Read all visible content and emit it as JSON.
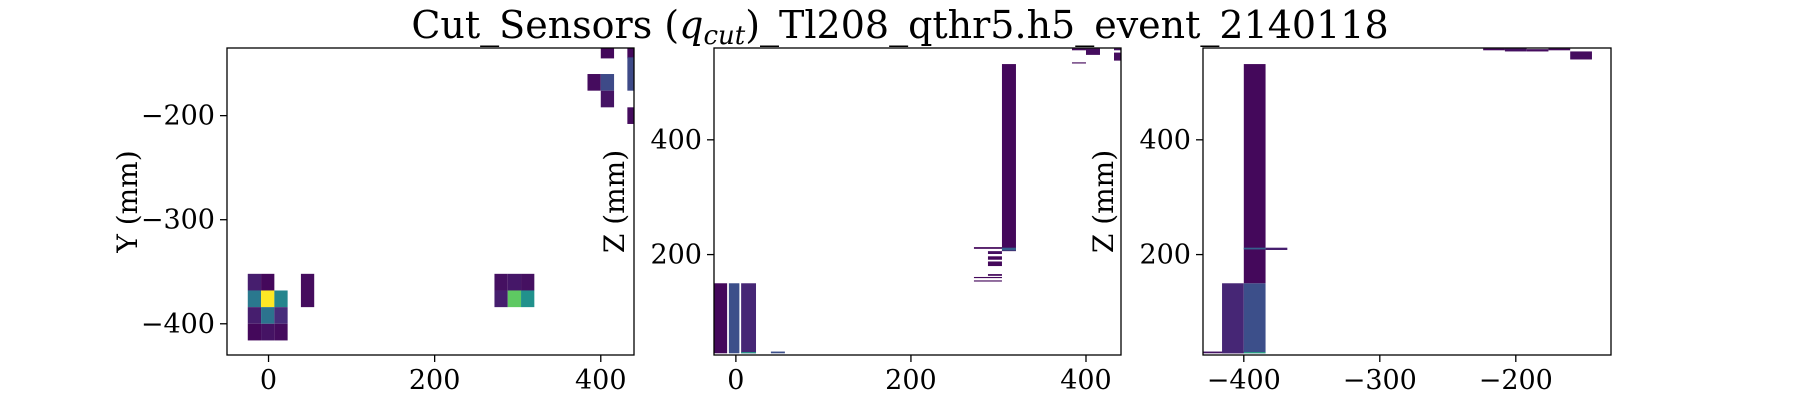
{
  "figure": {
    "title_main": "Cut_Sensors (",
    "title_q": "q",
    "title_sub": "cut",
    "title_rest": ")_Tl208_qthr5.h5_event_2140118"
  },
  "colormap": {
    "name": "viridis",
    "stops": [
      "#440154",
      "#472f7d",
      "#3b528b",
      "#2c728e",
      "#21918c",
      "#28ae80",
      "#5ec962",
      "#addc30",
      "#fde725"
    ]
  },
  "chart_data": [
    {
      "type": "heatmap",
      "xlabel": "",
      "ylabel": "Y (mm)",
      "xlim": [
        -50,
        440
      ],
      "ylim": [
        -430,
        -135
      ],
      "xticks": [
        0,
        200,
        400
      ],
      "yticks": [
        -200,
        -300,
        -400
      ],
      "xtick_labels": [
        "0",
        "200",
        "400"
      ],
      "ytick_labels": [
        "−200",
        "−300",
        "−400"
      ],
      "cells": [
        {
          "x": -25,
          "y": -368,
          "w": 16,
          "h": 16,
          "v": 0.08
        },
        {
          "x": -9,
          "y": -368,
          "w": 16,
          "h": 16,
          "v": 0.02
        },
        {
          "x": -25,
          "y": -384,
          "w": 16,
          "h": 16,
          "v": 0.4
        },
        {
          "x": -9,
          "y": -384,
          "w": 16,
          "h": 16,
          "v": 1.0
        },
        {
          "x": 7,
          "y": -384,
          "w": 16,
          "h": 16,
          "v": 0.45
        },
        {
          "x": -25,
          "y": -400,
          "w": 16,
          "h": 16,
          "v": 0.08
        },
        {
          "x": -9,
          "y": -400,
          "w": 16,
          "h": 16,
          "v": 0.38
        },
        {
          "x": 7,
          "y": -400,
          "w": 16,
          "h": 16,
          "v": 0.12
        },
        {
          "x": -25,
          "y": -416,
          "w": 16,
          "h": 16,
          "v": 0.02
        },
        {
          "x": -9,
          "y": -416,
          "w": 16,
          "h": 16,
          "v": 0.05
        },
        {
          "x": 7,
          "y": -416,
          "w": 16,
          "h": 16,
          "v": 0.03
        },
        {
          "x": 39,
          "y": -384,
          "w": 16,
          "h": 32,
          "v": 0.03
        },
        {
          "x": 272,
          "y": -368,
          "w": 16,
          "h": 16,
          "v": 0.04
        },
        {
          "x": 288,
          "y": -368,
          "w": 16,
          "h": 16,
          "v": 0.06
        },
        {
          "x": 304,
          "y": -368,
          "w": 16,
          "h": 16,
          "v": 0.04
        },
        {
          "x": 272,
          "y": -384,
          "w": 16,
          "h": 16,
          "v": 0.08
        },
        {
          "x": 288,
          "y": -384,
          "w": 16,
          "h": 16,
          "v": 0.75
        },
        {
          "x": 304,
          "y": -384,
          "w": 16,
          "h": 16,
          "v": 0.5
        },
        {
          "x": 384,
          "y": -176,
          "w": 16,
          "h": 16,
          "v": 0.03
        },
        {
          "x": 400,
          "y": -145,
          "w": 16,
          "h": 31,
          "v": 0.02
        },
        {
          "x": 400,
          "y": -176,
          "w": 16,
          "h": 16,
          "v": 0.22
        },
        {
          "x": 400,
          "y": -192,
          "w": 16,
          "h": 16,
          "v": 0.05
        },
        {
          "x": 432,
          "y": -145,
          "w": 16,
          "h": 31,
          "v": 0.02
        },
        {
          "x": 432,
          "y": -176,
          "w": 16,
          "h": 32,
          "v": 0.22
        },
        {
          "x": 432,
          "y": -208,
          "w": 16,
          "h": 16,
          "v": 0.03
        }
      ]
    },
    {
      "type": "heatmap",
      "xlabel": "",
      "ylabel": "Z (mm)",
      "xlim": [
        -25,
        440
      ],
      "ylim": [
        25,
        560
      ],
      "xticks": [
        0,
        200,
        400
      ],
      "yticks": [
        200,
        400
      ],
      "xtick_labels": [
        "0",
        "200",
        "400"
      ],
      "ytick_labels": [
        "200",
        "400"
      ],
      "cells": [
        {
          "x": -25,
          "y": 28,
          "w": 15,
          "h": 122,
          "v": 0.02
        },
        {
          "x": -8,
          "y": 28,
          "w": 12,
          "h": 122,
          "v": 0.24
        },
        {
          "x": 6,
          "y": 28,
          "w": 17,
          "h": 122,
          "v": 0.1
        },
        {
          "x": 6,
          "y": 28,
          "w": 17,
          "h": 2,
          "v": 0.55
        },
        {
          "x": 40,
          "y": 28,
          "w": 16,
          "h": 3,
          "v": 0.24
        },
        {
          "x": 272,
          "y": 210,
          "w": 32,
          "h": 3,
          "v": 0.02
        },
        {
          "x": 272,
          "y": 153,
          "w": 32,
          "h": 2,
          "v": 0.02
        },
        {
          "x": 272,
          "y": 159,
          "w": 32,
          "h": 2,
          "v": 0.02
        },
        {
          "x": 288,
          "y": 163,
          "w": 16,
          "h": 3,
          "v": 0.02
        },
        {
          "x": 288,
          "y": 180,
          "w": 16,
          "h": 8,
          "v": 0.02
        },
        {
          "x": 288,
          "y": 191,
          "w": 16,
          "h": 6,
          "v": 0.02
        },
        {
          "x": 288,
          "y": 201,
          "w": 16,
          "h": 5,
          "v": 0.04
        },
        {
          "x": 304,
          "y": 206,
          "w": 16,
          "h": 326,
          "v": 0.02
        },
        {
          "x": 304,
          "y": 207,
          "w": 16,
          "h": 5,
          "v": 0.3
        },
        {
          "x": 384,
          "y": 556,
          "w": 16,
          "h": 3,
          "v": 0.02
        },
        {
          "x": 384,
          "y": 533,
          "w": 16,
          "h": 2,
          "v": 0.02
        },
        {
          "x": 400,
          "y": 548,
          "w": 16,
          "h": 11,
          "v": 0.03
        },
        {
          "x": 432,
          "y": 538,
          "w": 16,
          "h": 14,
          "v": 0.03
        },
        {
          "x": 432,
          "y": 556,
          "w": 16,
          "h": 3,
          "v": 0.05
        }
      ]
    },
    {
      "type": "heatmap",
      "xlabel": "",
      "ylabel": "Z (mm)",
      "xlim": [
        -430,
        -130
      ],
      "ylim": [
        25,
        560
      ],
      "xticks": [
        -400,
        -300,
        -200
      ],
      "yticks": [
        200,
        400
      ],
      "xtick_labels": [
        "−400",
        "−300",
        "−200"
      ],
      "ytick_labels": [
        "200",
        "400"
      ],
      "cells": [
        {
          "x": -430,
          "y": 28,
          "w": 30,
          "h": 3,
          "v": 0.05
        },
        {
          "x": -416,
          "y": 28,
          "w": 16,
          "h": 122,
          "v": 0.1
        },
        {
          "x": -400,
          "y": 28,
          "w": 16,
          "h": 122,
          "v": 0.24
        },
        {
          "x": -400,
          "y": 28,
          "w": 16,
          "h": 2,
          "v": 0.6
        },
        {
          "x": -400,
          "y": 150,
          "w": 16,
          "h": 382,
          "v": 0.02
        },
        {
          "x": -384,
          "y": 208,
          "w": 16,
          "h": 4,
          "v": 0.08
        },
        {
          "x": -400,
          "y": 209,
          "w": 16,
          "h": 3,
          "v": 0.3
        },
        {
          "x": -224,
          "y": 556,
          "w": 16,
          "h": 3,
          "v": 0.02
        },
        {
          "x": -208,
          "y": 554,
          "w": 16,
          "h": 5,
          "v": 0.04
        },
        {
          "x": -192,
          "y": 554,
          "w": 16,
          "h": 4,
          "v": 0.03
        },
        {
          "x": -176,
          "y": 556,
          "w": 16,
          "h": 3,
          "v": 0.02
        },
        {
          "x": -160,
          "y": 540,
          "w": 16,
          "h": 14,
          "v": 0.03
        }
      ]
    }
  ]
}
